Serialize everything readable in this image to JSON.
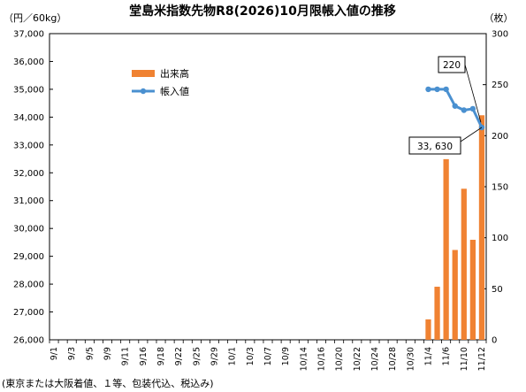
{
  "chart_data": {
    "type": "bar",
    "title": "堂島米指数先物R8(2026)10月限帳入値の推移",
    "y_left_unit": "（円／60kg）",
    "y_right_unit": "（枚）",
    "footnote": "(東京または大阪着値、１等、包装代込、税込み)",
    "y_left_ticks": [
      "37,000",
      "36,000",
      "35,000",
      "34,000",
      "33,000",
      "32,000",
      "31,000",
      "30,000",
      "29,000",
      "28,000",
      "27,000",
      "26,000"
    ],
    "y_right_ticks": [
      "300",
      "250",
      "200",
      "150",
      "100",
      "50",
      "0"
    ],
    "x_ticks": [
      "9/1",
      "9/3",
      "9/5",
      "9/9",
      "9/11",
      "9/16",
      "9/18",
      "9/22",
      "9/25",
      "9/29",
      "10/1",
      "10/3",
      "10/7",
      "10/9",
      "10/14",
      "10/16",
      "10/20",
      "10/22",
      "10/24",
      "10/28",
      "10/30",
      "11/4",
      "11/6",
      "11/10",
      "11/12"
    ],
    "ylim_left": [
      26000,
      37000
    ],
    "ylim_right": [
      0,
      300
    ],
    "grid": false,
    "legend_position": "top-left",
    "series": [
      {
        "name": "出来高",
        "kind": "bar",
        "axis": "right",
        "color": "#F08232",
        "x": [
          "11/4",
          "11/5",
          "11/6",
          "11/7",
          "11/10",
          "11/11",
          "11/12"
        ],
        "values": [
          20,
          52,
          177,
          88,
          148,
          98,
          220
        ]
      },
      {
        "name": "帳入値",
        "kind": "line",
        "axis": "left",
        "color": "#4A90D0",
        "x": [
          "11/4",
          "11/5",
          "11/6",
          "11/7",
          "11/10",
          "11/11",
          "11/12"
        ],
        "values": [
          35000,
          35000,
          35000,
          34400,
          34250,
          34300,
          33630
        ]
      }
    ],
    "annotations": [
      {
        "text": "220",
        "target": "出来高 11/12"
      },
      {
        "text": "33, 630",
        "target": "帳入値 11/12"
      }
    ]
  }
}
